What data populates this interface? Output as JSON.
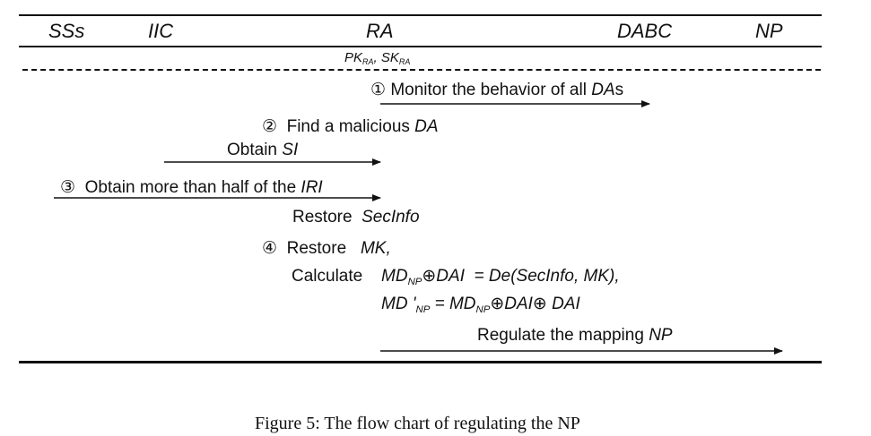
{
  "parties": [
    "SSs",
    "IIC",
    "RA",
    "DABC",
    "NP"
  ],
  "ra_keys": {
    "pk": "PK",
    "pk_sub": "RA",
    "sep": ", ",
    "sk": "SK",
    "sk_sub": "RA"
  },
  "steps": {
    "step1": {
      "num": "①",
      "text": " Monitor the behavior of all ",
      "text_it": "DA",
      "text_end": "s"
    },
    "step2": {
      "num": "②",
      "text": "  Find a malicious ",
      "text_it": "DA"
    },
    "obtain_si": {
      "text": "Obtain ",
      "text_it": "SI"
    },
    "step3": {
      "num": "③",
      "text": "  Obtain more than half of the ",
      "text_it": "IRI"
    },
    "restore_secinfo": {
      "text": "Restore  ",
      "text_it": "SecInfo"
    },
    "step4": {
      "num": "④",
      "text": "  Restore   ",
      "text_it": "MK,"
    },
    "calculate": {
      "label": "Calculate",
      "md": "MD",
      "md_sub": "NP",
      "rest": "⊕DAI  = De(SecInfo, MK),"
    },
    "md_prime": {
      "md": "MD '",
      "sub1": "NP",
      "eq": " = MD",
      "sub2": "NP",
      "rest": "⊕DAI⊕ DAI"
    },
    "regulate": {
      "text": "Regulate the mapping ",
      "text_it": "NP"
    }
  },
  "caption": "Figure 5: The flow chart of regulating the NP"
}
